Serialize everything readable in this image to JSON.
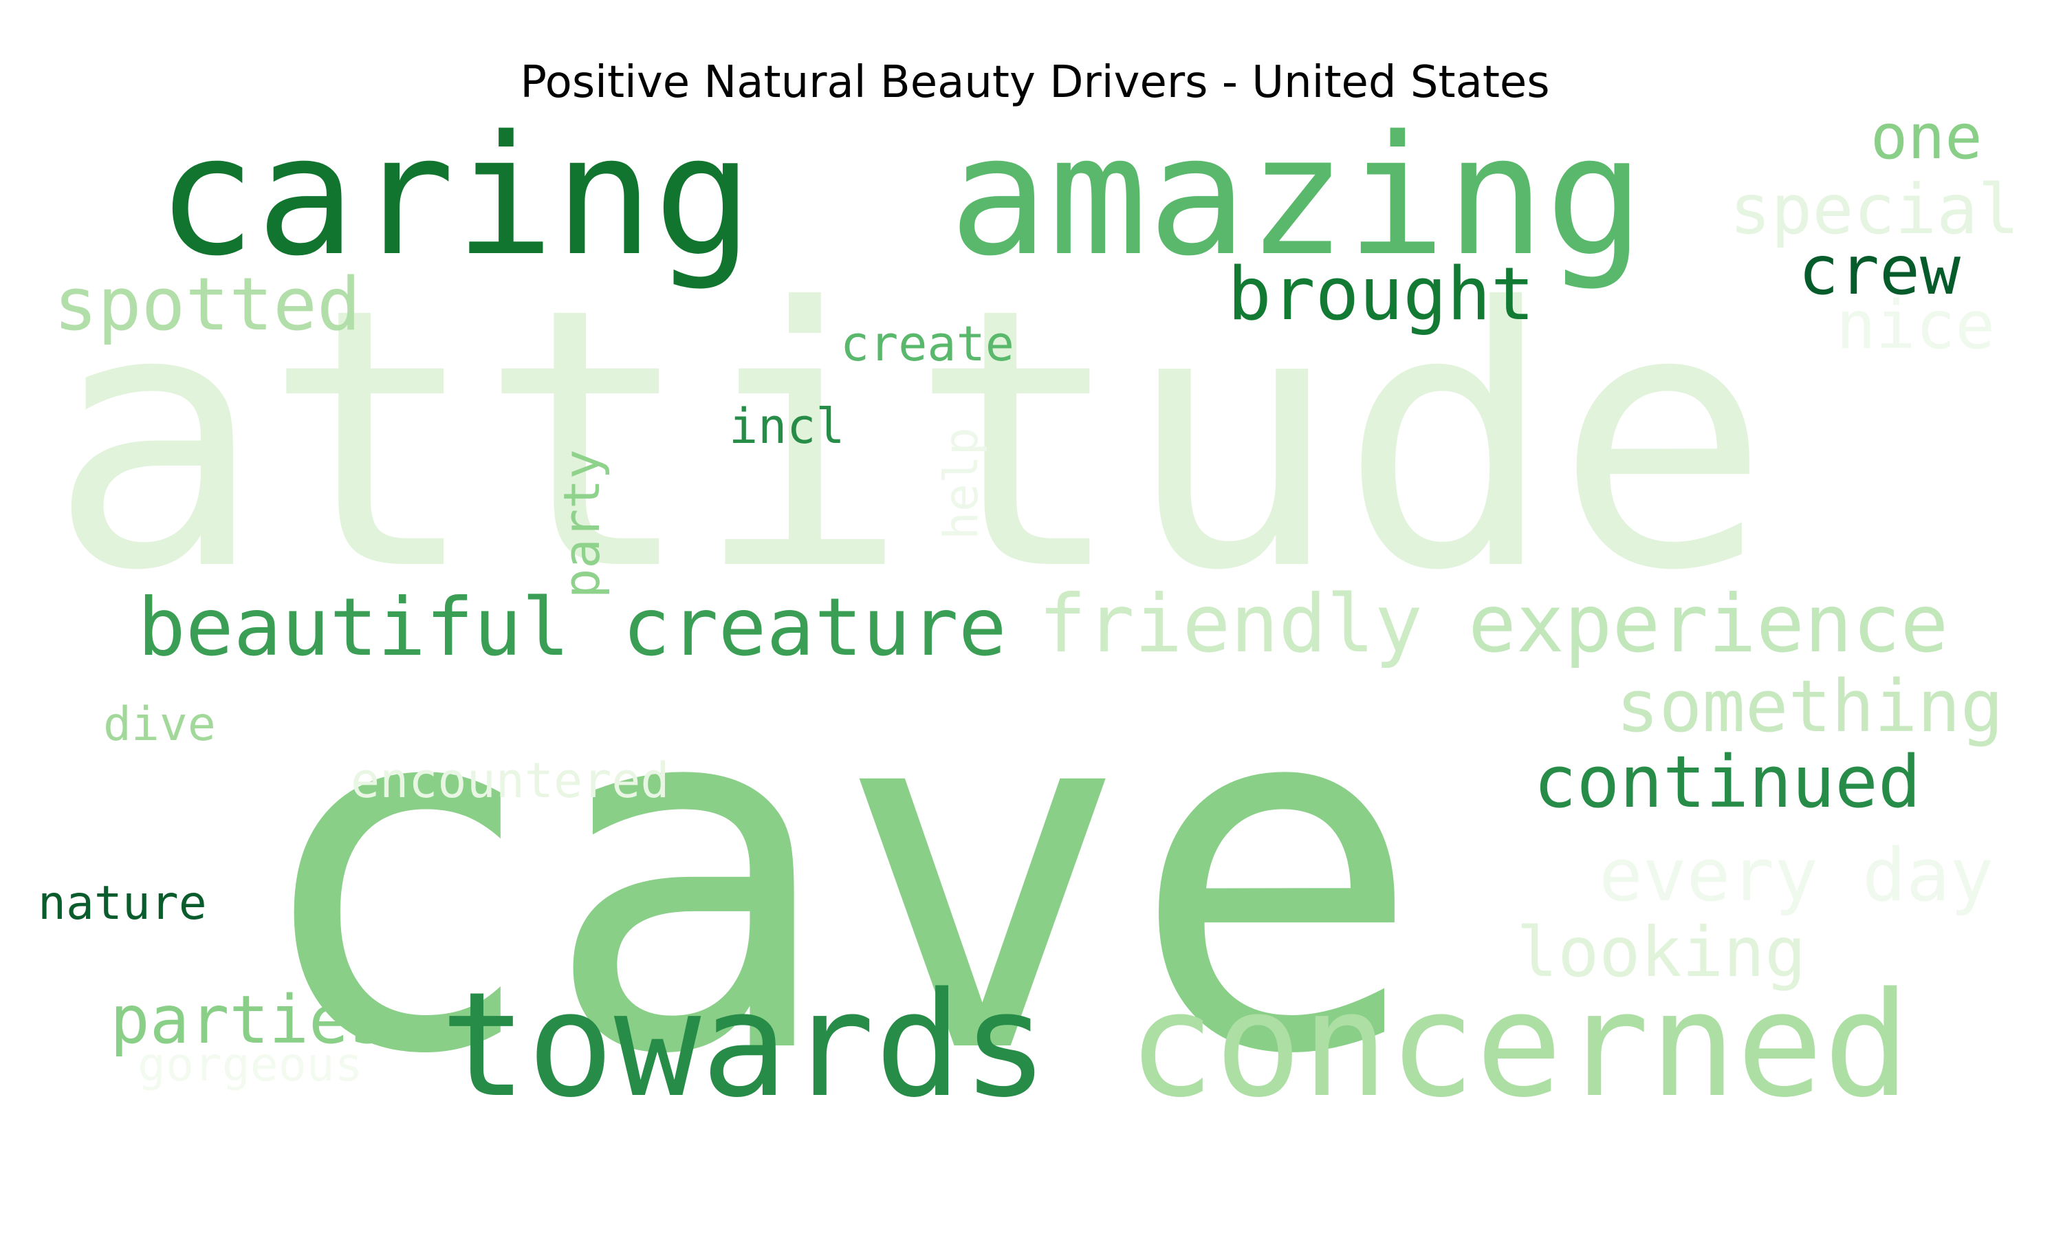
{
  "chart_data": {
    "type": "wordcloud",
    "title": "Positive Natural Beauty Drivers - United States",
    "colormap": "Greens",
    "words": [
      {
        "text": "attitude",
        "color": "#e1f3db"
      },
      {
        "text": "cave",
        "color": "#89cf88"
      },
      {
        "text": "caring",
        "color": "#11752f"
      },
      {
        "text": "amazing",
        "color": "#59b86b"
      },
      {
        "text": "towards",
        "color": "#268c47"
      },
      {
        "text": "concerned",
        "color": "#addfa5"
      },
      {
        "text": "beautiful",
        "color": "#3a9e54"
      },
      {
        "text": "creature",
        "color": "#3a9e54"
      },
      {
        "text": "friendly",
        "color": "#cdebc5"
      },
      {
        "text": "experience",
        "color": "#c2e7bb"
      },
      {
        "text": "spotted",
        "color": "#b2dfa9"
      },
      {
        "text": "brought",
        "color": "#137a34"
      },
      {
        "text": "one",
        "color": "#89cf88"
      },
      {
        "text": "special",
        "color": "#e6f5e1"
      },
      {
        "text": "crew",
        "color": "#065b2a"
      },
      {
        "text": "nice",
        "color": "#f0f9ed"
      },
      {
        "text": "something",
        "color": "#c8e9c0"
      },
      {
        "text": "continued",
        "color": "#268c47"
      },
      {
        "text": "every day",
        "color": "#f0f9ed"
      },
      {
        "text": "looking",
        "color": "#e1f3db"
      },
      {
        "text": "parties",
        "color": "#89cf88"
      },
      {
        "text": "gorgeous",
        "color": "#f3faf0"
      },
      {
        "text": "create",
        "color": "#59b86b"
      },
      {
        "text": "incl",
        "color": "#268c47"
      },
      {
        "text": "help",
        "color": "#eef8ea"
      },
      {
        "text": "party",
        "color": "#8fd28c"
      },
      {
        "text": "dive",
        "color": "#a2d99b"
      },
      {
        "text": "encountered",
        "color": "#e8f6e3"
      },
      {
        "text": "nature",
        "color": "#0b5c2c"
      }
    ]
  }
}
